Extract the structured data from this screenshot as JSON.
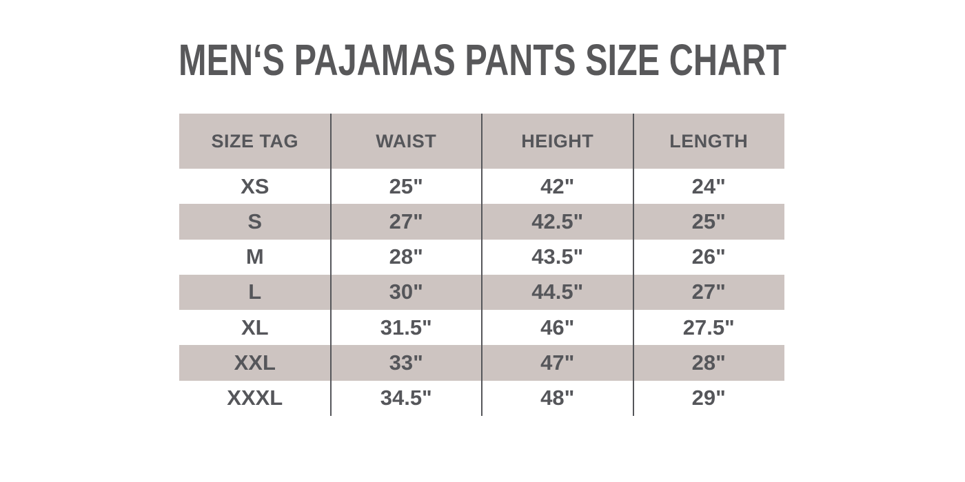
{
  "title": "MEN‘S PAJAMAS PANTS SIZE CHART",
  "colors": {
    "background": "#ffffff",
    "row_shade": "#cdc4c1",
    "text": "#55565a",
    "divider": "#55565a"
  },
  "chart_data": {
    "type": "table",
    "title": "MEN‘S PAJAMAS PANTS SIZE CHART",
    "columns": [
      "SIZE TAG",
      "WAIST",
      "HEIGHT",
      "LENGTH"
    ],
    "rows": [
      [
        "XS",
        "25\"",
        "42\"",
        "24\""
      ],
      [
        "S",
        "27\"",
        "42.5\"",
        "25\""
      ],
      [
        "M",
        "28\"",
        "43.5\"",
        "26\""
      ],
      [
        "L",
        "30\"",
        "44.5\"",
        "27\""
      ],
      [
        "XL",
        "31.5\"",
        "46\"",
        "27.5\""
      ],
      [
        "XXL",
        "33\"",
        "47\"",
        "28\""
      ],
      [
        "XXXL",
        "34.5\"",
        "48\"",
        "29\""
      ]
    ],
    "layout": {
      "shaded_rows": [
        "header",
        "S",
        "L",
        "XXL"
      ],
      "horizontal_gridlines": false,
      "vertical_gridlines": true
    }
  }
}
